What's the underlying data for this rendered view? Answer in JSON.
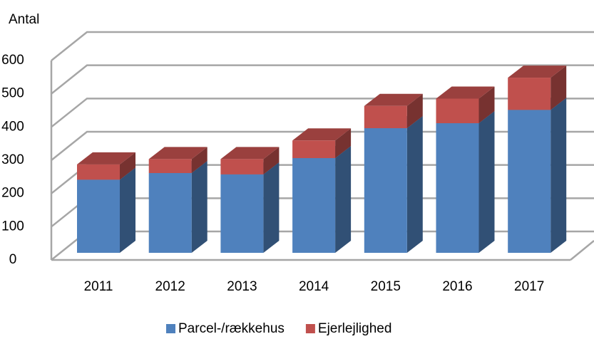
{
  "chart_data": {
    "type": "bar",
    "stacked": true,
    "y_label": "Antal",
    "categories": [
      "2011",
      "2012",
      "2013",
      "2014",
      "2015",
      "2016",
      "2017"
    ],
    "series": [
      {
        "name": "Parcel-/rækkehus",
        "color": "#4f81bd",
        "values": [
          220,
          240,
          236,
          285,
          375,
          390,
          430
        ]
      },
      {
        "name": "Ejerlejlighed",
        "color": "#c0504d",
        "values": [
          46,
          42,
          46,
          53,
          67,
          74,
          97
        ]
      }
    ],
    "ylim": [
      0,
      600
    ],
    "yticks": [
      0,
      100,
      200,
      300,
      400,
      500,
      600
    ],
    "grid": true
  }
}
